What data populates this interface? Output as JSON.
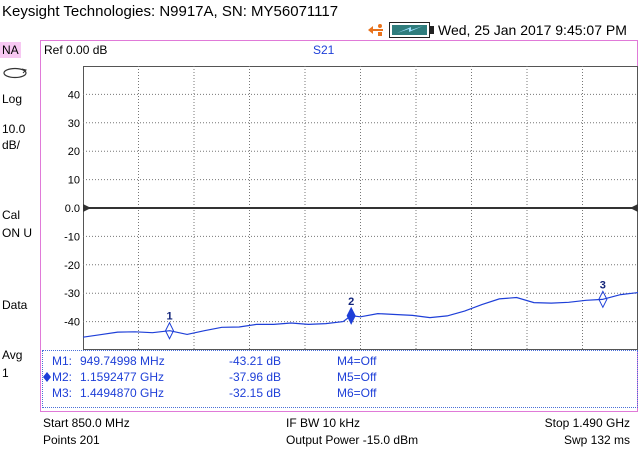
{
  "header": {
    "instrument": "Keysight Technologies: N9917A, SN: MY56071117",
    "datetime": "Wed, 25 Jan 2017 9:45:07 PM"
  },
  "icons": [
    "usb-icon",
    "battery-icon",
    "sweep-icon",
    "active-marker-icon"
  ],
  "left_panel": {
    "mode": "NA",
    "format": "Log",
    "scale_value": "10.0",
    "scale_unit": "dB/",
    "cal_label": "Cal",
    "cal_status": "ON U",
    "trace_label": "Data",
    "avg_label": "Avg",
    "avg_value": "1"
  },
  "display": {
    "ref_level": "Ref 0.00 dB",
    "trace_name": "S21",
    "y_ticks": [
      "40",
      "30",
      "20",
      "10",
      "0.0",
      "-10",
      "-20",
      "-30",
      "-40"
    ],
    "trace_color": "#1e3fd8",
    "ref_line_color": "#333333"
  },
  "chart_data": {
    "type": "line",
    "title": "S21",
    "xlabel": "",
    "ylabel": "",
    "x_start_ghz": 0.85,
    "x_stop_ghz": 1.49,
    "ylim": [
      -50,
      50
    ],
    "grid": true,
    "points": 201,
    "reference_level_db": 0.0,
    "series": [
      {
        "x": [
          0.85,
          0.87,
          0.89,
          0.91,
          0.93,
          0.95,
          0.97,
          0.99,
          1.01,
          1.03,
          1.05,
          1.07,
          1.09,
          1.11,
          1.13,
          1.15,
          1.159,
          1.17,
          1.19,
          1.21,
          1.23,
          1.25,
          1.27,
          1.29,
          1.31,
          1.33,
          1.35,
          1.37,
          1.39,
          1.41,
          1.43,
          1.449,
          1.47,
          1.49
        ],
        "values": [
          -45.5,
          -44.6,
          -43.7,
          -43.6,
          -43.9,
          -43.2,
          -44.5,
          -43.2,
          -42.0,
          -41.9,
          -41.0,
          -41.0,
          -40.5,
          -41.0,
          -40.7,
          -40.0,
          -37.9,
          -38.3,
          -37.2,
          -37.5,
          -37.8,
          -38.6,
          -38.0,
          -36.3,
          -34.0,
          -32.0,
          -31.5,
          -33.3,
          -33.5,
          -33.2,
          -32.5,
          -32.2,
          -30.5,
          -29.8
        ]
      }
    ],
    "markers": [
      {
        "label": "1",
        "x_ghz": 0.94974998,
        "value_db": -43.21
      },
      {
        "label": "2",
        "x_ghz": 1.1592477,
        "value_db": -37.96
      },
      {
        "label": "3",
        "x_ghz": 1.449487,
        "value_db": -32.15
      }
    ]
  },
  "marker_table": {
    "rows": [
      {
        "name": "M1:",
        "freq": "949.74998 MHz",
        "value": "-43.21 dB",
        "other": "M4=Off"
      },
      {
        "name": "M2:",
        "freq": "1.1592477 GHz",
        "value": "-37.96 dB",
        "other": "M5=Off"
      },
      {
        "name": "M3:",
        "freq": "1.4494870 GHz",
        "value": "-32.15 dB",
        "other": "M6=Off"
      }
    ]
  },
  "footer": {
    "start": "Start 850.0 MHz",
    "points": "Points 201",
    "if_bw": "IF BW 10 kHz",
    "output_power": "Output Power -15.0 dBm",
    "stop": "Stop 1.490 GHz",
    "sweep_time": "Swp 132 ms"
  }
}
